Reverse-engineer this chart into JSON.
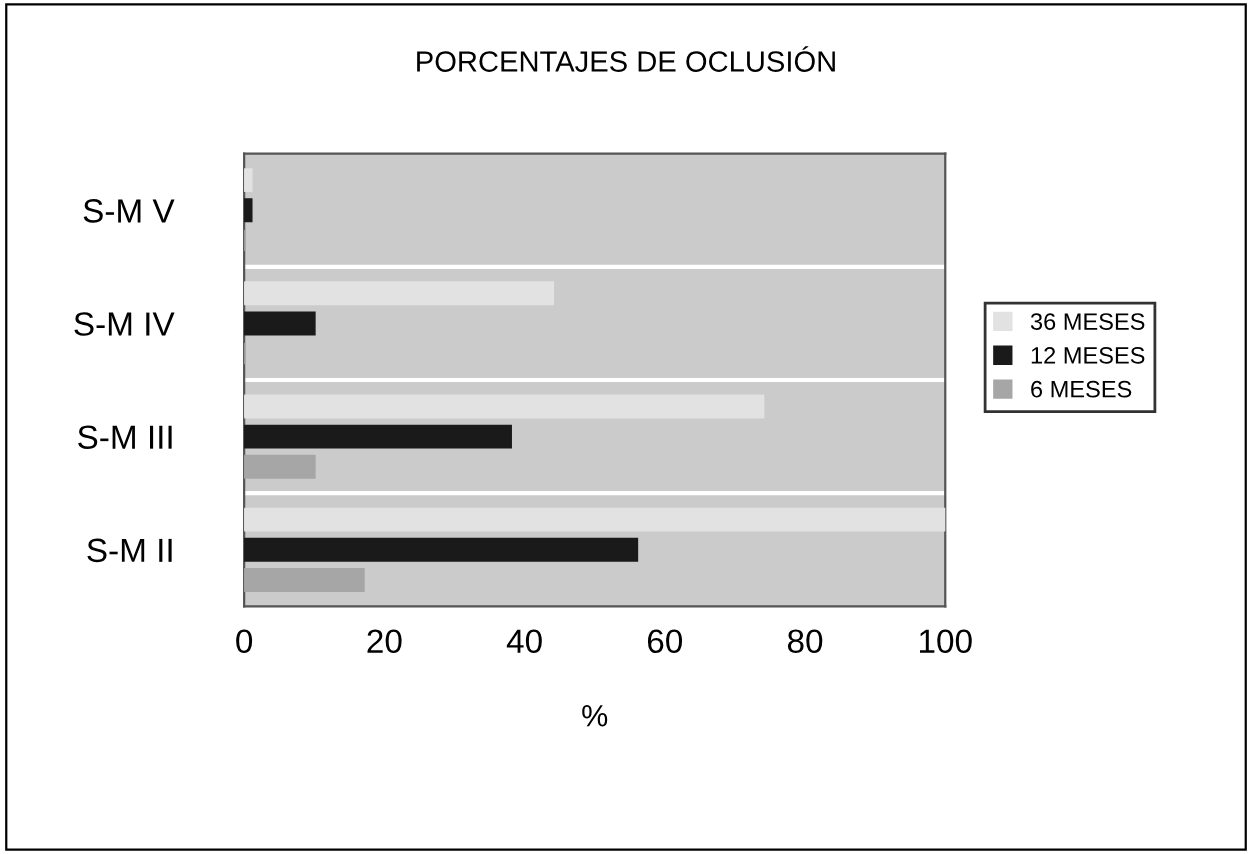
{
  "chart_data": {
    "type": "bar",
    "orientation": "horizontal",
    "title": "PORCENTAJES DE OCLUSIÓN",
    "xlabel": "%",
    "categories": [
      "S-M V",
      "S-M IV",
      "S-M III",
      "S-M II"
    ],
    "series": [
      {
        "name": "36 MESES",
        "color": "#e2e2e2",
        "values": [
          1,
          44,
          74,
          100
        ]
      },
      {
        "name": "12 MESES",
        "color": "#1a1a1a",
        "values": [
          1,
          10,
          38,
          56
        ]
      },
      {
        "name": "6 MESES",
        "color": "#a6a6a6",
        "values": [
          0,
          0,
          10,
          17
        ]
      }
    ],
    "xlim": [
      0,
      100
    ],
    "xticks": [
      0,
      20,
      40,
      60,
      80,
      100
    ],
    "grid": "y",
    "legend": "right"
  }
}
